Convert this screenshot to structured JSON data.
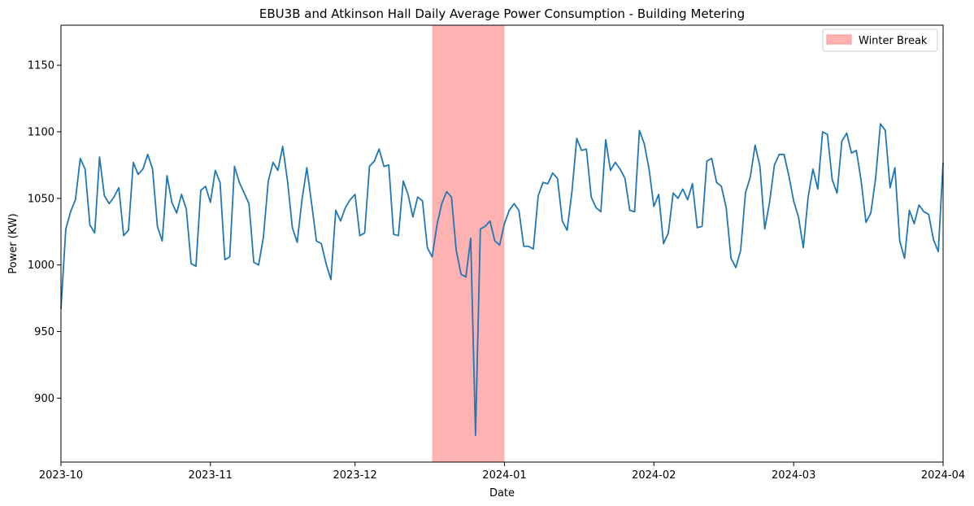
{
  "chart_data": {
    "type": "line",
    "title": "EBU3B and Atkinson Hall Daily Average Power Consumption - Building Metering",
    "xlabel": "Date",
    "ylabel": "Power (KW)",
    "x_range": [
      "2023-10-01",
      "2024-04-01"
    ],
    "ylim": [
      852,
      1180
    ],
    "x_ticks": [
      {
        "date": "2023-10-01",
        "label": "2023-10"
      },
      {
        "date": "2023-11-01",
        "label": "2023-11"
      },
      {
        "date": "2023-12-01",
        "label": "2023-12"
      },
      {
        "date": "2024-01-01",
        "label": "2024-01"
      },
      {
        "date": "2024-02-01",
        "label": "2024-02"
      },
      {
        "date": "2024-03-01",
        "label": "2024-03"
      },
      {
        "date": "2024-04-01",
        "label": "2024-04"
      }
    ],
    "y_ticks": [
      {
        "value": 900,
        "label": "900"
      },
      {
        "value": 950,
        "label": "950"
      },
      {
        "value": 1000,
        "label": "1000"
      },
      {
        "value": 1050,
        "label": "1050"
      },
      {
        "value": 1100,
        "label": "1100"
      },
      {
        "value": 1150,
        "label": "1150"
      }
    ],
    "grid": false,
    "legend_position": "top-right",
    "legend": [
      {
        "label": "Winter Break",
        "color": "#ffb3b3"
      }
    ],
    "highlight": {
      "label": "Winter Break",
      "start": "2023-12-17",
      "end": "2024-01-01",
      "color": "#ff0000",
      "opacity": 0.3
    },
    "series": [
      {
        "color": "#1f77b4",
        "x": [
          "2023-10-01",
          "2023-10-02",
          "2023-10-03",
          "2023-10-04",
          "2023-10-05",
          "2023-10-06",
          "2023-10-07",
          "2023-10-08",
          "2023-10-09",
          "2023-10-10",
          "2023-10-11",
          "2023-10-12",
          "2023-10-13",
          "2023-10-14",
          "2023-10-15",
          "2023-10-16",
          "2023-10-17",
          "2023-10-18",
          "2023-10-19",
          "2023-10-20",
          "2023-10-21",
          "2023-10-22",
          "2023-10-23",
          "2023-10-24",
          "2023-10-25",
          "2023-10-26",
          "2023-10-27",
          "2023-10-28",
          "2023-10-29",
          "2023-10-30",
          "2023-10-31",
          "2023-11-01",
          "2023-11-02",
          "2023-11-03",
          "2023-11-04",
          "2023-11-05",
          "2023-11-06",
          "2023-11-07",
          "2023-11-08",
          "2023-11-09",
          "2023-11-10",
          "2023-11-11",
          "2023-11-12",
          "2023-11-13",
          "2023-11-14",
          "2023-11-15",
          "2023-11-16",
          "2023-11-17",
          "2023-11-18",
          "2023-11-19",
          "2023-11-20",
          "2023-11-21",
          "2023-11-22",
          "2023-11-23",
          "2023-11-24",
          "2023-11-25",
          "2023-11-26",
          "2023-11-27",
          "2023-11-28",
          "2023-11-29",
          "2023-11-30",
          "2023-12-01",
          "2023-12-02",
          "2023-12-03",
          "2023-12-04",
          "2023-12-05",
          "2023-12-06",
          "2023-12-07",
          "2023-12-08",
          "2023-12-09",
          "2023-12-10",
          "2023-12-11",
          "2023-12-12",
          "2023-12-13",
          "2023-12-14",
          "2023-12-15",
          "2023-12-16",
          "2023-12-17",
          "2023-12-18",
          "2023-12-19",
          "2023-12-20",
          "2023-12-21",
          "2023-12-22",
          "2023-12-23",
          "2023-12-24",
          "2023-12-25",
          "2023-12-26",
          "2023-12-27",
          "2023-12-28",
          "2023-12-29",
          "2023-12-30",
          "2023-12-31",
          "2024-01-01",
          "2024-01-02",
          "2024-01-03",
          "2024-01-04",
          "2024-01-05",
          "2024-01-06",
          "2024-01-07",
          "2024-01-08",
          "2024-01-09",
          "2024-01-10",
          "2024-01-11",
          "2024-01-12",
          "2024-01-13",
          "2024-01-14",
          "2024-01-15",
          "2024-01-16",
          "2024-01-17",
          "2024-01-18",
          "2024-01-19",
          "2024-01-20",
          "2024-01-21",
          "2024-01-22",
          "2024-01-23",
          "2024-01-24",
          "2024-01-25",
          "2024-01-26",
          "2024-01-27",
          "2024-01-28",
          "2024-01-29",
          "2024-01-30",
          "2024-01-31",
          "2024-02-01",
          "2024-02-02",
          "2024-02-03",
          "2024-02-04",
          "2024-02-05",
          "2024-02-06",
          "2024-02-07",
          "2024-02-08",
          "2024-02-09",
          "2024-02-10",
          "2024-02-11",
          "2024-02-12",
          "2024-02-13",
          "2024-02-14",
          "2024-02-15",
          "2024-02-16",
          "2024-02-17",
          "2024-02-18",
          "2024-02-19",
          "2024-02-20",
          "2024-02-21",
          "2024-02-22",
          "2024-02-23",
          "2024-02-24",
          "2024-02-25",
          "2024-02-26",
          "2024-02-27",
          "2024-02-28",
          "2024-02-29",
          "2024-03-01",
          "2024-03-02",
          "2024-03-03",
          "2024-03-04",
          "2024-03-05",
          "2024-03-06",
          "2024-03-07",
          "2024-03-08",
          "2024-03-09",
          "2024-03-10",
          "2024-03-11",
          "2024-03-12",
          "2024-03-13",
          "2024-03-14",
          "2024-03-15",
          "2024-03-16",
          "2024-03-17",
          "2024-03-18",
          "2024-03-19",
          "2024-03-20",
          "2024-03-21",
          "2024-03-22",
          "2024-03-23",
          "2024-03-24",
          "2024-03-25",
          "2024-03-26",
          "2024-03-27",
          "2024-03-28",
          "2024-03-29",
          "2024-03-30",
          "2024-03-31",
          "2024-04-01"
        ],
        "y": [
          967,
          1027,
          1040,
          1049,
          1080,
          1072,
          1030,
          1024,
          1081,
          1052,
          1046,
          1051,
          1058,
          1022,
          1026,
          1077,
          1068,
          1072,
          1083,
          1072,
          1029,
          1018,
          1067,
          1047,
          1039,
          1053,
          1042,
          1001,
          999,
          1056,
          1059,
          1047,
          1071,
          1062,
          1004,
          1006,
          1074,
          1062,
          1054,
          1046,
          1002,
          1000,
          1021,
          1063,
          1077,
          1071,
          1089,
          1063,
          1028,
          1017,
          1049,
          1073,
          1046,
          1018,
          1016,
          1001,
          989,
          1041,
          1033,
          1043,
          1049,
          1053,
          1022,
          1024,
          1074,
          1078,
          1087,
          1074,
          1075,
          1023,
          1022,
          1063,
          1053,
          1036,
          1051,
          1048,
          1013,
          1006,
          1030,
          1046,
          1055,
          1051,
          1011,
          993,
          991,
          1020,
          872,
          1027,
          1029,
          1033,
          1018,
          1015,
          1031,
          1041,
          1046,
          1041,
          1014,
          1014,
          1012,
          1052,
          1062,
          1061,
          1069,
          1065,
          1033,
          1026,
          1055,
          1095,
          1086,
          1087,
          1051,
          1043,
          1040,
          1094,
          1071,
          1077,
          1072,
          1065,
          1041,
          1040,
          1101,
          1091,
          1072,
          1044,
          1053,
          1016,
          1024,
          1054,
          1050,
          1057,
          1049,
          1061,
          1028,
          1029,
          1078,
          1080,
          1062,
          1059,
          1043,
          1005,
          998,
          1011,
          1054,
          1066,
          1090,
          1074,
          1027,
          1047,
          1075,
          1083,
          1083,
          1067,
          1048,
          1036,
          1013,
          1051,
          1072,
          1057,
          1100,
          1098,
          1064,
          1054,
          1093,
          1099,
          1084,
          1086,
          1063,
          1032,
          1039,
          1065,
          1106,
          1101,
          1058,
          1073,
          1018,
          1005,
          1041,
          1031,
          1045,
          1040,
          1038,
          1019,
          1010,
          1077
        ]
      }
    ]
  }
}
